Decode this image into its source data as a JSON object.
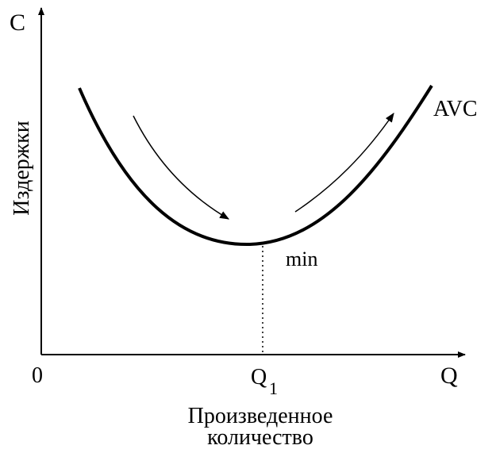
{
  "chart_data": {
    "type": "line",
    "title": "",
    "ylabel": "Издержки",
    "xlabel": "Произведенное количество",
    "xlabel_lines": [
      "Произведенное",
      "количество"
    ],
    "y_axis_symbol": "C",
    "x_axis_symbol": "Q",
    "origin_label": "0",
    "q1_label": "Q",
    "q1_subscript": "1",
    "min_label": "min",
    "series": [
      {
        "name": "AVC",
        "shape": "u-curve",
        "min_at": "Q1"
      }
    ],
    "colors": {
      "ink": "#000000",
      "background": "#ffffff"
    },
    "annotations": [
      {
        "type": "arrow",
        "direction": "down-right",
        "meaning": "falling section"
      },
      {
        "type": "arrow",
        "direction": "up-right",
        "meaning": "rising section"
      },
      {
        "type": "dotted-guide",
        "at": "Q1"
      }
    ],
    "grid": false
  }
}
